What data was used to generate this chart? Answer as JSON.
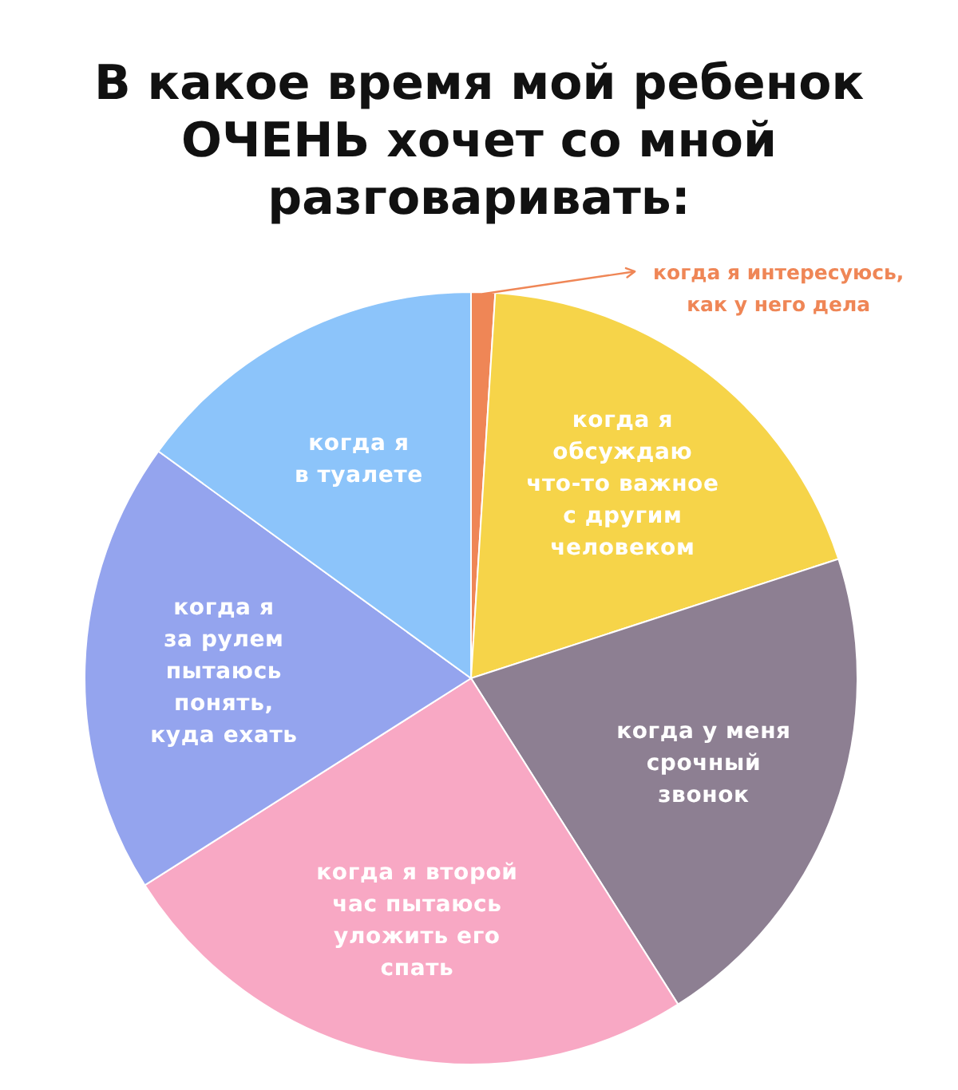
{
  "chart_data": {
    "type": "pie",
    "title": "В какое время мой ребенок\nОЧЕНЬ хочет со мной\nразговаривать:",
    "categories": [
      "когда я интересуюсь,\nкак у него дела",
      "когда я\nобсуждаю\nчто-то важное\nс другим\nчеловеком",
      "когда у меня\nсрочный\nзвонок",
      "когда я второй\nчас пытаюсь\nуложить его\nспать",
      "когда я\nза рулем\nпытаюсь\nпонять,\nкуда ехать",
      "когда я\nв туалете"
    ],
    "values": [
      1,
      19,
      21,
      25,
      19,
      15
    ],
    "colors": [
      "#ef8656",
      "#f6d449",
      "#8d7f92",
      "#f8a8c4",
      "#94a4ee",
      "#8cc4fa"
    ]
  }
}
